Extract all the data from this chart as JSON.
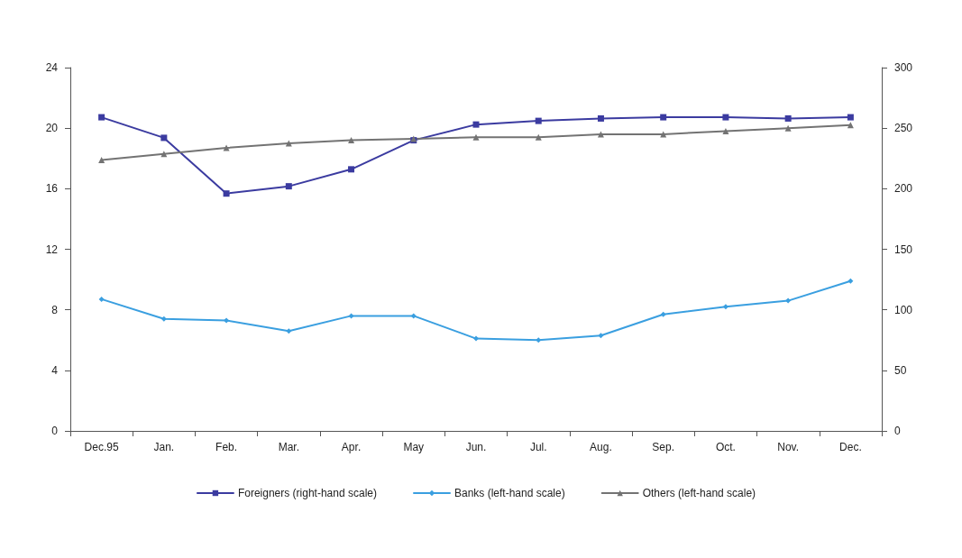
{
  "chart_data": {
    "type": "line",
    "categories": [
      "Dec.95",
      "Jan.",
      "Feb.",
      "Mar.",
      "Apr.",
      "May",
      "Jun.",
      "Jul.",
      "Aug.",
      "Sep.",
      "Oct.",
      "Nov.",
      "Dec."
    ],
    "series": [
      {
        "name": "Foreigners (right-hand scale)",
        "color": "#3b3ba0",
        "marker": "square",
        "axis": "y2",
        "values": [
          259,
          242,
          196,
          202,
          216,
          240,
          253,
          256,
          258,
          259,
          259,
          258,
          259
        ]
      },
      {
        "name": "Banks (left-hand scale)",
        "color": "#3a9fe0",
        "marker": "diamond",
        "values": [
          8.7,
          7.4,
          7.3,
          6.6,
          7.6,
          7.6,
          6.1,
          6.0,
          6.3,
          7.7,
          8.2,
          8.6,
          9.9
        ]
      },
      {
        "name": "Others (left-hand scale)",
        "color": "#737373",
        "marker": "triangle",
        "values": [
          17.9,
          18.3,
          18.7,
          19.0,
          19.2,
          19.3,
          19.4,
          19.4,
          19.6,
          19.6,
          19.8,
          20.0,
          20.2
        ]
      }
    ],
    "ylim": [
      0,
      24
    ],
    "yticks": [
      0,
      4,
      8,
      12,
      16,
      20,
      24
    ],
    "y2lim": [
      0,
      300
    ],
    "y2ticks": [
      0,
      50,
      100,
      150,
      200,
      250,
      300
    ],
    "grid": false,
    "legend": "bottom",
    "line_style": "solid"
  }
}
